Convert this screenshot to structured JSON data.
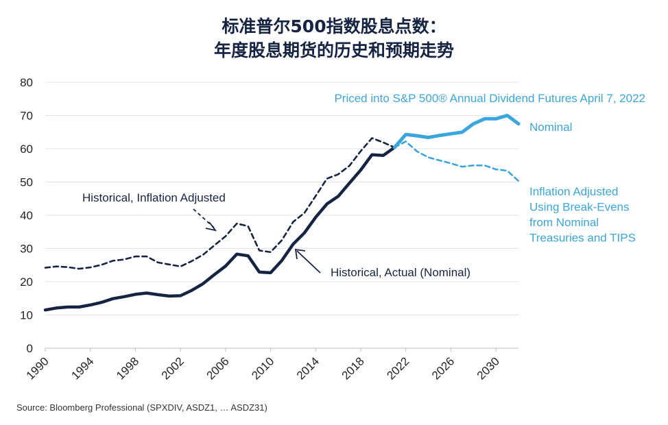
{
  "chart_data": {
    "type": "line",
    "title_line1": "标准普尔500指数股息点数：",
    "title_line2": "年度股息期货的历史和预期走势",
    "ylim": [
      0,
      80
    ],
    "yticks": [
      0,
      10,
      20,
      30,
      40,
      50,
      60,
      70,
      80
    ],
    "xlim": [
      1990,
      2032
    ],
    "xticks": [
      "1990",
      "1994",
      "1998",
      "2002",
      "2006",
      "2010",
      "2014",
      "2018",
      "2022",
      "2026",
      "2030"
    ],
    "grid": true,
    "series": [
      {
        "name": "Historical, Actual (Nominal)",
        "style": "solid",
        "color": "#152442",
        "x": [
          1990,
          1991,
          1992,
          1993,
          1994,
          1995,
          1996,
          1997,
          1998,
          1999,
          2000,
          2001,
          2002,
          2003,
          2004,
          2005,
          2006,
          2007,
          2008,
          2009,
          2010,
          2011,
          2012,
          2013,
          2014,
          2015,
          2016,
          2017,
          2018,
          2019,
          2020,
          2021
        ],
        "y": [
          11.5,
          12.1,
          12.4,
          12.4,
          13.0,
          13.8,
          14.9,
          15.5,
          16.2,
          16.6,
          16.1,
          15.7,
          15.8,
          17.4,
          19.4,
          22.1,
          24.7,
          28.3,
          27.8,
          22.9,
          22.7,
          26.4,
          31.3,
          34.7,
          39.4,
          43.4,
          45.7,
          49.7,
          53.6,
          58.2,
          58.0,
          60.4
        ]
      },
      {
        "name": "Historical, Inflation Adjusted",
        "style": "dashed",
        "color": "#152442",
        "x": [
          1990,
          1991,
          1992,
          1993,
          1994,
          1995,
          1996,
          1997,
          1998,
          1999,
          2000,
          2001,
          2002,
          2003,
          2004,
          2005,
          2006,
          2007,
          2008,
          2009,
          2010,
          2011,
          2012,
          2013,
          2014,
          2015,
          2016,
          2017,
          2018,
          2019,
          2020,
          2021
        ],
        "y": [
          24.2,
          24.6,
          24.4,
          23.9,
          24.3,
          25.1,
          26.3,
          26.7,
          27.6,
          27.6,
          25.8,
          25.2,
          24.6,
          26.2,
          28.1,
          30.9,
          33.7,
          37.5,
          36.7,
          29.4,
          28.9,
          32.5,
          38.0,
          40.7,
          45.8,
          51.0,
          52.3,
          54.9,
          59.3,
          63.2,
          61.9,
          60.4
        ]
      },
      {
        "name": "Nominal",
        "style": "solid",
        "color": "#3aa6dd",
        "x": [
          2021,
          2022,
          2023,
          2024,
          2025,
          2026,
          2027,
          2028,
          2029,
          2030,
          2031,
          2032
        ],
        "y": [
          60.4,
          64.3,
          63.9,
          63.4,
          64.0,
          64.5,
          65.0,
          67.5,
          69.0,
          69.0,
          70.0,
          67.5
        ]
      },
      {
        "name": "Inflation Adjusted Using Break-Evens from Nominal Treasuries and TIPS",
        "style": "dashed",
        "color": "#3aa6dd",
        "x": [
          2021,
          2022,
          2023,
          2024,
          2025,
          2026,
          2027,
          2028,
          2029,
          2030,
          2031,
          2032
        ],
        "y": [
          60.4,
          62.2,
          59.2,
          57.4,
          56.5,
          55.6,
          54.6,
          55.0,
          55.0,
          53.8,
          53.4,
          50.3
        ]
      }
    ],
    "annotations": {
      "futures_header": "Priced into S&P 500® Annual Dividend Futures April 7, 2022",
      "nominal_label": "Nominal",
      "infl_adj_label_lines": [
        "Inflation Adjusted",
        "Using Break-Evens",
        "from Nominal",
        "Treasuries and TIPS"
      ],
      "hist_infl_label": "Historical, Inflation Adjusted",
      "hist_actual_label": "Historical, Actual (Nominal)"
    },
    "source": "Source: Bloomberg Professional (SPXDIV, ASDZ1, … ASDZ31)"
  }
}
